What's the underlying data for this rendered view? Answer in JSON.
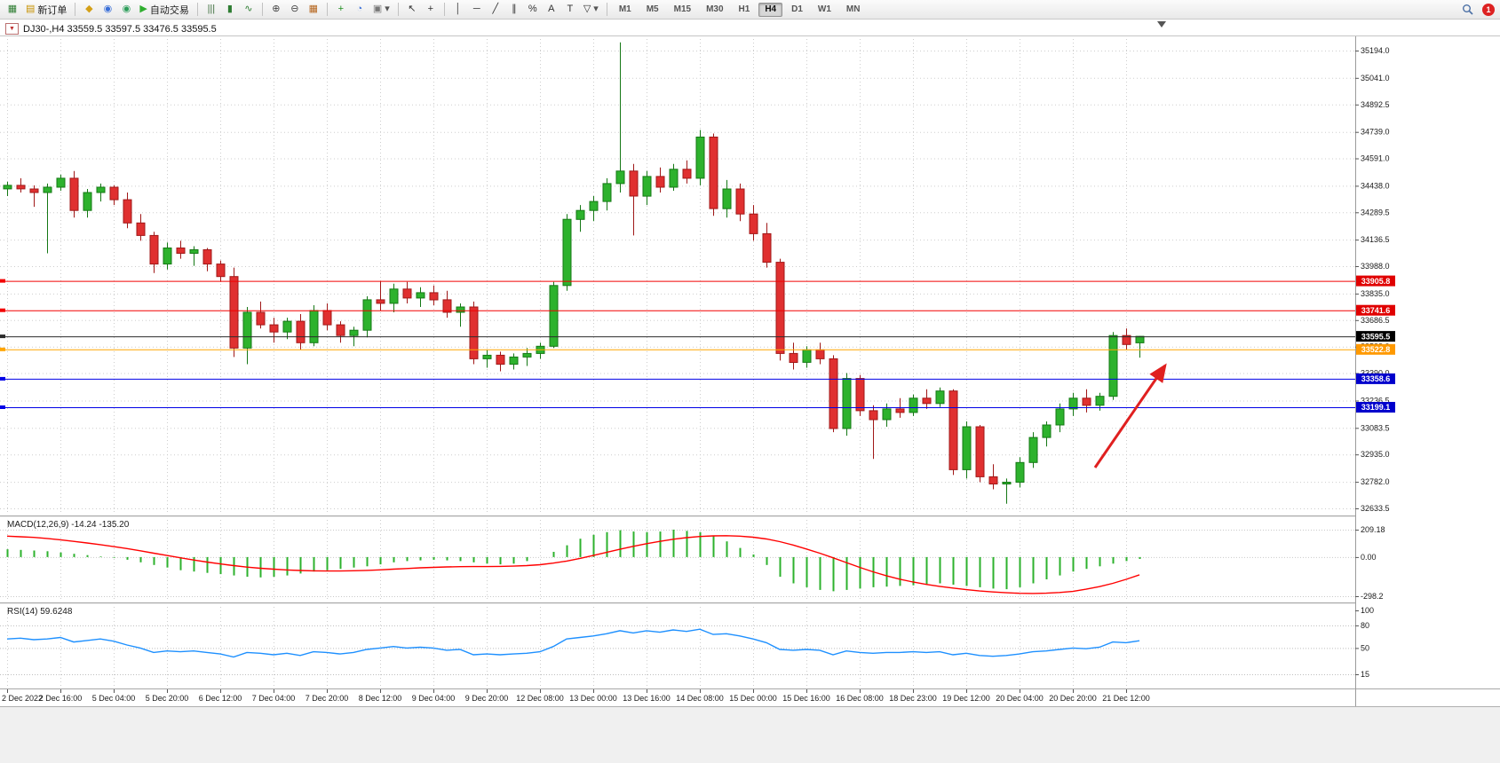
{
  "colors": {
    "up": "#2DB22D",
    "up_border": "#157815",
    "down": "#E03030",
    "down_border": "#A01818",
    "macd_bar": "#2DB22D",
    "macd_signal": "#FF0000",
    "rsi_line": "#1E90FF",
    "grid": "#CDCDCD",
    "arrow": "#E02020",
    "axis_text": "#1a1a1a"
  },
  "toolbar": {
    "notification_count": "1",
    "groups": [
      {
        "items": [
          {
            "name": "new-chart",
            "glyph": "▦",
            "color": "#2e7d32"
          },
          {
            "name": "new-order",
            "glyph": "▤",
            "color": "#c79200",
            "label": "新订单"
          }
        ]
      },
      {
        "items": [
          {
            "name": "profiles",
            "glyph": "◆",
            "color": "#d4a017"
          },
          {
            "name": "market-watch",
            "glyph": "◉",
            "color": "#3a6fd8"
          },
          {
            "name": "navigator",
            "glyph": "◉",
            "color": "#2e9e5b"
          },
          {
            "name": "auto-trading",
            "glyph": "▶",
            "color": "#2fae2f",
            "label": "自动交易"
          }
        ]
      },
      {
        "items": [
          {
            "name": "bar-chart-mode",
            "glyph": "|||",
            "color": "#3c6e3c"
          },
          {
            "name": "candlestick-mode",
            "glyph": "▮",
            "color": "#2e7d32"
          },
          {
            "name": "line-chart-mode",
            "glyph": "∿",
            "color": "#2e7d32"
          }
        ]
      },
      {
        "items": [
          {
            "name": "zoom-in",
            "glyph": "⊕",
            "color": "#444444"
          },
          {
            "name": "zoom-out",
            "glyph": "⊖",
            "color": "#444444"
          },
          {
            "name": "tile-windows",
            "glyph": "▦",
            "color": "#b5651d"
          }
        ]
      },
      {
        "items": [
          {
            "name": "indicators",
            "glyph": "+",
            "color": "#1f8f1f"
          },
          {
            "name": "periods",
            "glyph": "◔",
            "color": "#3a6fd8"
          },
          {
            "name": "templates",
            "glyph": "▣",
            "color": "#777777",
            "dropdown": true
          }
        ]
      },
      {
        "items": [
          {
            "name": "cursor",
            "glyph": "↖",
            "color": "#333333"
          },
          {
            "name": "crosshair",
            "glyph": "+",
            "color": "#333333"
          }
        ]
      },
      {
        "items": [
          {
            "name": "vertical-line",
            "glyph": "│",
            "color": "#333333"
          },
          {
            "name": "horizontal-line",
            "glyph": "─",
            "color": "#333333"
          },
          {
            "name": "trendline",
            "glyph": "╱",
            "color": "#333333"
          },
          {
            "name": "equidistant-channel",
            "glyph": "∥",
            "color": "#333333"
          },
          {
            "name": "fibonacci",
            "glyph": "%",
            "color": "#333333"
          },
          {
            "name": "text",
            "glyph": "A",
            "color": "#333333"
          },
          {
            "name": "text-label",
            "glyph": "T",
            "color": "#333333"
          },
          {
            "name": "arrows",
            "glyph": "▽",
            "color": "#333333",
            "dropdown": true
          }
        ]
      }
    ],
    "timeframes": {
      "items": [
        "M1",
        "M5",
        "M15",
        "M30",
        "H1",
        "H4",
        "D1",
        "W1",
        "MN"
      ],
      "active": "H4"
    }
  },
  "chart": {
    "header": {
      "collapse_glyph": "▼",
      "title": "DJ30-,H4 33559.5 33597.5 33476.5 33595.5",
      "symbol": "DJ30-",
      "period": "H4",
      "open": "33559.5",
      "high": "33597.5",
      "low": "33476.5",
      "close": "33595.5"
    },
    "annotations": {
      "arrow": {
        "from": [
          1233,
          527
        ],
        "to": [
          1312,
          412
        ]
      }
    }
  },
  "indicators": {
    "macd": {
      "label": "MACD(12,26,9) -14.24 -135.20"
    },
    "rsi": {
      "label": "RSI(14) 59.6248"
    }
  },
  "chart_data": [
    {
      "type": "candlestick",
      "symbol": "DJ30-",
      "timeframe": "H4",
      "y_axis": {
        "min": 32633.5,
        "max": 35194.0,
        "labels": [
          "35194.0",
          "35041.0",
          "34892.5",
          "34739.0",
          "34591.0",
          "34438.0",
          "34289.5",
          "34136.5",
          "33988.0",
          "33835.0",
          "33686.5",
          "33538.0",
          "33390.0",
          "33236.5",
          "33083.5",
          "32935.0",
          "32782.0",
          "32633.5"
        ]
      },
      "levels": [
        {
          "price": 33905.8,
          "color": "#F20000",
          "box": "#E00000",
          "label": "33905.8"
        },
        {
          "price": 33741.6,
          "color": "#F20000",
          "box": "#E00000",
          "label": "33741.6"
        },
        {
          "price": 33595.5,
          "color": "#2B2B2B",
          "box": "#000000",
          "label": "33595.5"
        },
        {
          "price": 33522.8,
          "color": "#FFA500",
          "box": "#FF9900",
          "label": "33522.8"
        },
        {
          "price": 33358.6,
          "color": "#0000E6",
          "box": "#0000CC",
          "label": "33358.6"
        },
        {
          "price": 33199.1,
          "color": "#0000E6",
          "box": "#0000CC",
          "label": "33199.1"
        }
      ],
      "x_labels": [
        {
          "index": 0,
          "label": "2 Dec 2022"
        },
        {
          "index": 4,
          "label": "2 Dec 16:00"
        },
        {
          "index": 8,
          "label": "5 Dec 04:00"
        },
        {
          "index": 12,
          "label": "5 Dec 20:00"
        },
        {
          "index": 16,
          "label": "6 Dec 12:00"
        },
        {
          "index": 20,
          "label": "7 Dec 04:00"
        },
        {
          "index": 24,
          "label": "7 Dec 20:00"
        },
        {
          "index": 28,
          "label": "8 Dec 12:00"
        },
        {
          "index": 32,
          "label": "9 Dec 04:00"
        },
        {
          "index": 36,
          "label": "9 Dec 20:00"
        },
        {
          "index": 40,
          "label": "12 Dec 08:00"
        },
        {
          "index": 44,
          "label": "13 Dec 00:00"
        },
        {
          "index": 48,
          "label": "13 Dec 16:00"
        },
        {
          "index": 52,
          "label": "14 Dec 08:00"
        },
        {
          "index": 56,
          "label": "15 Dec 00:00"
        },
        {
          "index": 60,
          "label": "15 Dec 16:00"
        },
        {
          "index": 64,
          "label": "16 Dec 08:00"
        },
        {
          "index": 68,
          "label": "18 Dec 23:00"
        },
        {
          "index": 72,
          "label": "19 Dec 12:00"
        },
        {
          "index": 76,
          "label": "20 Dec 04:00"
        },
        {
          "index": 80,
          "label": "20 Dec 20:00"
        },
        {
          "index": 84,
          "label": "21 Dec 12:00"
        }
      ],
      "ohlc": [
        [
          34420,
          34460,
          34380,
          34440
        ],
        [
          34440,
          34480,
          34400,
          34420
        ],
        [
          34420,
          34440,
          34320,
          34400
        ],
        [
          34400,
          34450,
          34060,
          34430
        ],
        [
          34430,
          34500,
          34410,
          34480
        ],
        [
          34480,
          34520,
          34260,
          34300
        ],
        [
          34300,
          34420,
          34260,
          34400
        ],
        [
          34400,
          34450,
          34350,
          34430
        ],
        [
          34430,
          34440,
          34330,
          34360
        ],
        [
          34360,
          34400,
          34200,
          34230
        ],
        [
          34230,
          34280,
          34130,
          34160
        ],
        [
          34160,
          34180,
          33950,
          34000
        ],
        [
          34000,
          34120,
          33970,
          34090
        ],
        [
          34090,
          34130,
          34030,
          34060
        ],
        [
          34060,
          34100,
          33990,
          34080
        ],
        [
          34080,
          34090,
          33960,
          34000
        ],
        [
          34000,
          34020,
          33900,
          33930
        ],
        [
          33930,
          33980,
          33480,
          33530
        ],
        [
          33530,
          33760,
          33440,
          33730
        ],
        [
          33730,
          33790,
          33640,
          33660
        ],
        [
          33660,
          33700,
          33560,
          33620
        ],
        [
          33620,
          33700,
          33580,
          33680
        ],
        [
          33680,
          33720,
          33520,
          33560
        ],
        [
          33560,
          33770,
          33540,
          33740
        ],
        [
          33740,
          33780,
          33630,
          33660
        ],
        [
          33660,
          33680,
          33560,
          33600
        ],
        [
          33600,
          33650,
          33540,
          33630
        ],
        [
          33630,
          33820,
          33590,
          33800
        ],
        [
          33800,
          33905,
          33740,
          33780
        ],
        [
          33780,
          33890,
          33730,
          33860
        ],
        [
          33860,
          33900,
          33780,
          33810
        ],
        [
          33810,
          33870,
          33760,
          33840
        ],
        [
          33840,
          33880,
          33770,
          33800
        ],
        [
          33800,
          33850,
          33700,
          33730
        ],
        [
          33730,
          33780,
          33650,
          33760
        ],
        [
          33760,
          33790,
          33440,
          33470
        ],
        [
          33470,
          33520,
          33420,
          33490
        ],
        [
          33490,
          33510,
          33400,
          33440
        ],
        [
          33440,
          33500,
          33410,
          33480
        ],
        [
          33480,
          33530,
          33430,
          33500
        ],
        [
          33500,
          33560,
          33470,
          33540
        ],
        [
          33540,
          33900,
          33530,
          33880
        ],
        [
          33880,
          34280,
          33850,
          34250
        ],
        [
          34250,
          34330,
          34180,
          34300
        ],
        [
          34300,
          34380,
          34240,
          34350
        ],
        [
          34350,
          34480,
          34300,
          34450
        ],
        [
          34450,
          35240,
          34400,
          34520
        ],
        [
          34520,
          34560,
          34160,
          34380
        ],
        [
          34380,
          34520,
          34330,
          34490
        ],
        [
          34490,
          34540,
          34400,
          34430
        ],
        [
          34430,
          34560,
          34410,
          34530
        ],
        [
          34530,
          34580,
          34450,
          34480
        ],
        [
          34480,
          34750,
          34440,
          34710
        ],
        [
          34710,
          34730,
          34270,
          34310
        ],
        [
          34310,
          34470,
          34260,
          34420
        ],
        [
          34420,
          34450,
          34240,
          34280
        ],
        [
          34280,
          34330,
          34130,
          34170
        ],
        [
          34170,
          34230,
          33980,
          34010
        ],
        [
          34010,
          34030,
          33460,
          33500
        ],
        [
          33500,
          33560,
          33410,
          33450
        ],
        [
          33450,
          33540,
          33420,
          33520
        ],
        [
          33520,
          33560,
          33440,
          33470
        ],
        [
          33470,
          33490,
          33060,
          33080
        ],
        [
          33080,
          33390,
          33040,
          33360
        ],
        [
          33360,
          33380,
          33150,
          33180
        ],
        [
          33180,
          33210,
          32910,
          33130
        ],
        [
          33130,
          33220,
          33090,
          33190
        ],
        [
          33190,
          33250,
          33140,
          33170
        ],
        [
          33170,
          33270,
          33150,
          33250
        ],
        [
          33250,
          33300,
          33190,
          33220
        ],
        [
          33220,
          33310,
          33200,
          33290
        ],
        [
          33290,
          33300,
          32820,
          32850
        ],
        [
          32850,
          33120,
          32800,
          33090
        ],
        [
          33090,
          33100,
          32780,
          32810
        ],
        [
          32810,
          32880,
          32740,
          32770
        ],
        [
          32770,
          32800,
          32660,
          32780
        ],
        [
          32780,
          32920,
          32750,
          32890
        ],
        [
          32890,
          33060,
          32860,
          33030
        ],
        [
          33030,
          33120,
          32980,
          33100
        ],
        [
          33100,
          33220,
          33060,
          33190
        ],
        [
          33190,
          33280,
          33150,
          33250
        ],
        [
          33250,
          33300,
          33170,
          33210
        ],
        [
          33210,
          33280,
          33180,
          33260
        ],
        [
          33260,
          33620,
          33240,
          33600
        ],
        [
          33600,
          33640,
          33520,
          33550
        ],
        [
          33559.5,
          33597.5,
          33476.5,
          33595.5
        ]
      ]
    },
    {
      "type": "bar",
      "name": "MACD(12,26,9)",
      "last_values": "-14.24 -135.20",
      "y_labels": [
        {
          "value": 209.18,
          "label": "209.18"
        },
        {
          "value": 0,
          "label": "0.00"
        },
        {
          "value": -298.2,
          "label": "-298.2"
        }
      ],
      "histogram": [
        60,
        55,
        50,
        45,
        35,
        25,
        15,
        5,
        -5,
        -20,
        -40,
        -60,
        -80,
        -100,
        -110,
        -120,
        -130,
        -140,
        -150,
        -155,
        -150,
        -140,
        -125,
        -110,
        -100,
        -90,
        -80,
        -70,
        -55,
        -40,
        -30,
        -25,
        -20,
        -25,
        -30,
        -40,
        -50,
        -55,
        -50,
        -30,
        0,
        40,
        90,
        140,
        170,
        190,
        205,
        195,
        190,
        195,
        209,
        200,
        190,
        160,
        120,
        70,
        20,
        -60,
        -150,
        -200,
        -230,
        -250,
        -260,
        -250,
        -240,
        -230,
        -225,
        -220,
        -215,
        -210,
        -200,
        -210,
        -220,
        -230,
        -240,
        -245,
        -230,
        -200,
        -170,
        -140,
        -110,
        -90,
        -70,
        -50,
        -30,
        -14.24
      ],
      "signal": [
        160,
        155,
        150,
        142,
        132,
        120,
        108,
        95,
        80,
        65,
        48,
        30,
        12,
        -5,
        -22,
        -38,
        -52,
        -65,
        -76,
        -85,
        -92,
        -98,
        -102,
        -105,
        -106,
        -106,
        -104,
        -101,
        -97,
        -92,
        -87,
        -82,
        -78,
        -75,
        -73,
        -72,
        -72,
        -71,
        -69,
        -65,
        -58,
        -46,
        -30,
        -10,
        12,
        36,
        60,
        82,
        102,
        120,
        136,
        148,
        157,
        162,
        163,
        160,
        152,
        138,
        118,
        92,
        62,
        30,
        -5,
        -42,
        -78,
        -112,
        -142,
        -168,
        -190,
        -208,
        -223,
        -236,
        -248,
        -258,
        -266,
        -272,
        -276,
        -277,
        -275,
        -270,
        -262,
        -245,
        -225,
        -200,
        -170,
        -135.2
      ]
    },
    {
      "type": "line",
      "name": "RSI(14)",
      "last_value": "59.6248",
      "y_labels": [
        {
          "value": 100,
          "label": "100"
        },
        {
          "value": 80,
          "label": "80"
        },
        {
          "value": 50,
          "label": "50"
        },
        {
          "value": 15,
          "label": "15"
        }
      ],
      "dashed_levels": [
        80,
        50,
        15
      ],
      "values": [
        62,
        63,
        61,
        62,
        64,
        58,
        60,
        62,
        59,
        54,
        50,
        44,
        46,
        45,
        46,
        44,
        42,
        38,
        44,
        43,
        41,
        43,
        40,
        45,
        44,
        42,
        44,
        48,
        50,
        52,
        50,
        51,
        50,
        47,
        48,
        41,
        42,
        41,
        42,
        43,
        45,
        52,
        62,
        64,
        66,
        69,
        73,
        70,
        73,
        71,
        74,
        72,
        75,
        68,
        69,
        66,
        62,
        57,
        48,
        47,
        48,
        47,
        41,
        46,
        44,
        43,
        44,
        44,
        45,
        44,
        45,
        41,
        43,
        40,
        39,
        40,
        42,
        45,
        46,
        48,
        50,
        49,
        51,
        58,
        57,
        59.62
      ]
    }
  ]
}
